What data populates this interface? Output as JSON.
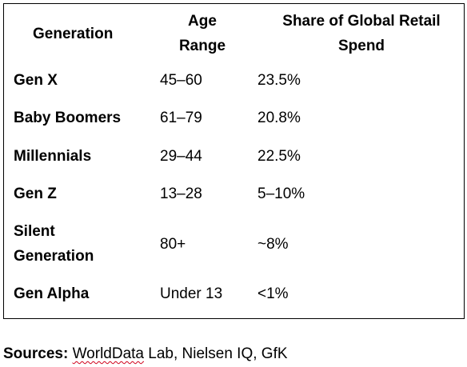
{
  "table": {
    "headers": {
      "generation": "Generation",
      "age_line1": "Age",
      "age_line2": "Range",
      "share_line1": "Share of Global Retail",
      "share_line2": "Spend"
    },
    "rows": [
      {
        "generation": "Gen X",
        "age": "45–60",
        "share": "23.5%"
      },
      {
        "generation": "Baby Boomers",
        "age": "61–79",
        "share": "20.8%"
      },
      {
        "generation": "Millennials",
        "age": "29–44",
        "share": "22.5%"
      },
      {
        "generation": "Gen Z",
        "age": "13–28",
        "share": "5–10%"
      },
      {
        "generation_line1": "Silent",
        "generation_line2": "Generation",
        "age": "80+",
        "share": "~8%"
      },
      {
        "generation": "Gen Alpha",
        "age": "Under 13",
        "share": "<1%"
      }
    ]
  },
  "sources": {
    "label": "Sources:",
    "source1": "WorldData",
    "rest": " Lab, Nielsen IQ, GfK"
  }
}
